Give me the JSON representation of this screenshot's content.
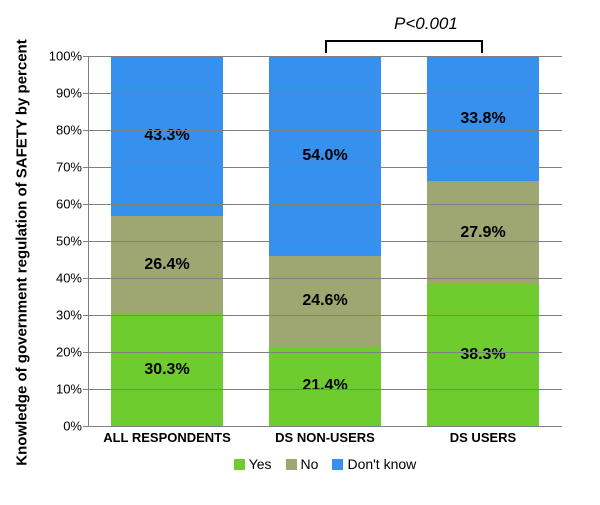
{
  "chart": {
    "type": "stacked-bar",
    "ylabel": "Knowledge of government regulation of SAFETY by percent",
    "ylim": [
      0,
      100
    ],
    "ytick_step": 10,
    "ytick_suffix": "%",
    "background_color": "#ffffff",
    "grid_color": "#808080",
    "categories": [
      "ALL RESPONDENTS",
      "DS NON-USERS",
      "DS USERS"
    ],
    "series": [
      {
        "name": "Yes",
        "color": "#6ecc2e"
      },
      {
        "name": "No",
        "color": "#9ea672"
      },
      {
        "name": "Don't know",
        "color": "#3591ed"
      }
    ],
    "data": [
      {
        "Yes": 30.3,
        "No": 26.4,
        "Don't know": 43.3
      },
      {
        "Yes": 21.4,
        "No": 24.6,
        "Don't know": 54.0
      },
      {
        "Yes": 38.3,
        "No": 27.9,
        "Don't know": 33.8
      }
    ],
    "value_suffix": "%",
    "value_fontsize": 16,
    "label_fontsize": 13,
    "annotation": {
      "text": "P<0.001",
      "between": [
        1,
        2
      ]
    }
  }
}
